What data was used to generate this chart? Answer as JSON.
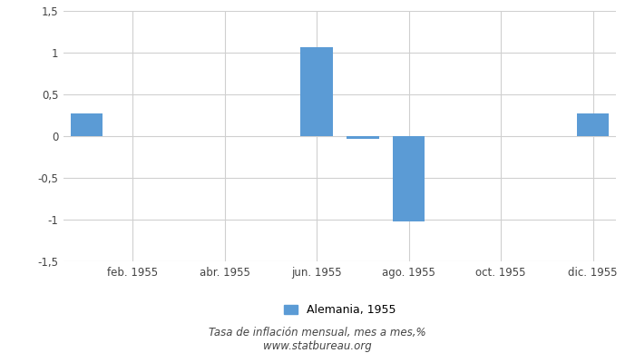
{
  "months": [
    1,
    2,
    3,
    4,
    5,
    6,
    7,
    8,
    9,
    10,
    11,
    12
  ],
  "values": [
    0.27,
    0.0,
    0.0,
    0.0,
    0.0,
    1.07,
    -0.03,
    -1.02,
    0.0,
    0.0,
    0.0,
    0.27
  ],
  "bar_color": "#5b9bd5",
  "tick_labels": [
    "feb. 1955",
    "abr. 1955",
    "jun. 1955",
    "ago. 1955",
    "oct. 1955",
    "dic. 1955"
  ],
  "tick_positions": [
    2,
    4,
    6,
    8,
    10,
    12
  ],
  "ylim": [
    -1.5,
    1.5
  ],
  "yticks": [
    -1.5,
    -1.0,
    -0.5,
    0.0,
    0.5,
    1.0,
    1.5
  ],
  "ytick_labels": [
    "-1,5",
    "-1",
    "-0,5",
    "0",
    "0,5",
    "1",
    "1,5"
  ],
  "legend_label": "Alemania, 1955",
  "footer_line1": "Tasa de inflación mensual, mes a mes,%",
  "footer_line2": "www.statbureau.org",
  "bg_color": "#ffffff",
  "grid_color": "#d0d0d0",
  "bar_width": 0.7
}
